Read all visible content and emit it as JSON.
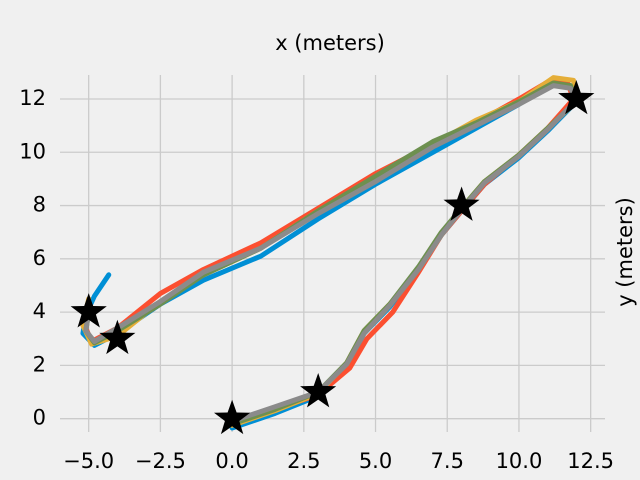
{
  "chart_data": {
    "type": "line",
    "title": "x (meters)",
    "y_label": "y (meters)",
    "xlim": [
      -6,
      13
    ],
    "ylim": [
      -0.5,
      12.9
    ],
    "xticks": [
      {
        "value": -5,
        "label": "−5.0"
      },
      {
        "value": -2.5,
        "label": "−2.5"
      },
      {
        "value": 0,
        "label": "0.0"
      },
      {
        "value": 2.5,
        "label": "2.5"
      },
      {
        "value": 5,
        "label": "5.0"
      },
      {
        "value": 7.5,
        "label": "7.5"
      },
      {
        "value": 10,
        "label": "10.0"
      },
      {
        "value": 12.5,
        "label": "12.5"
      }
    ],
    "yticks": [
      0,
      2,
      4,
      6,
      8,
      10,
      12
    ],
    "grid": true,
    "series": [
      {
        "color": "#008fd5",
        "x": [
          0,
          1.5,
          3,
          4,
          4.6,
          5.5,
          6.5,
          7.3,
          8,
          8.8,
          10,
          11,
          12,
          11.8,
          11.2,
          10,
          8.5,
          7,
          5,
          3,
          1,
          -1,
          -2.5,
          -4,
          -4.8,
          -5.2,
          -5.1,
          -4.8,
          -4.3
        ],
        "y": [
          -0.35,
          0.2,
          0.85,
          2,
          3.2,
          4.2,
          5.6,
          6.9,
          7.8,
          8.8,
          9.8,
          10.8,
          11.9,
          12.5,
          12.6,
          11.8,
          10.9,
          10,
          8.8,
          7.5,
          6.1,
          5.2,
          4.3,
          3.2,
          2.75,
          3.2,
          3.9,
          4.6,
          5.4
        ]
      },
      {
        "color": "#fc4f30",
        "x": [
          0,
          1.5,
          3,
          4.1,
          4.7,
          5.6,
          6.5,
          7.3,
          8,
          8.8,
          10,
          11,
          11.9,
          11.7,
          11.1,
          10,
          8.5,
          7,
          5,
          3,
          1,
          -1,
          -2.5,
          -4,
          -4.9,
          -5.1,
          -5
        ],
        "y": [
          -0.2,
          0.35,
          0.9,
          1.9,
          3,
          4,
          5.5,
          6.9,
          7.8,
          8.8,
          9.9,
          10.9,
          12,
          12.6,
          12.7,
          12,
          11.1,
          10.3,
          9.2,
          7.9,
          6.6,
          5.6,
          4.7,
          3.4,
          2.9,
          3.4,
          4.1
        ]
      },
      {
        "color": "#e5ae38",
        "x": [
          0,
          1.5,
          3,
          4,
          4.6,
          5.5,
          6.6,
          7.3,
          8,
          8.8,
          10,
          11,
          12.1,
          11.9,
          11.2,
          10,
          8.5,
          7,
          5,
          3,
          1,
          -1,
          -2.5,
          -4,
          -4.9,
          -5.2,
          -5
        ],
        "y": [
          -0.25,
          0.3,
          0.95,
          2.1,
          3.3,
          4.3,
          5.8,
          6.9,
          7.9,
          8.9,
          9.9,
          10.9,
          12,
          12.7,
          12.8,
          11.9,
          11.2,
          10.3,
          9,
          7.8,
          6.4,
          5.4,
          4.4,
          3.1,
          2.8,
          3.5,
          4.5
        ]
      },
      {
        "color": "#6d904f",
        "x": [
          0,
          1.5,
          3,
          4,
          4.6,
          5.5,
          6.5,
          7.3,
          8,
          8.8,
          10,
          11,
          12,
          11.8,
          11.2,
          10,
          8.5,
          7,
          5,
          3,
          1,
          -1,
          -2.5,
          -4,
          -4.8,
          -5.1,
          -5
        ],
        "y": [
          -0.2,
          0.35,
          1,
          2.1,
          3.3,
          4.3,
          5.7,
          7,
          7.9,
          8.9,
          9.9,
          10.9,
          11.9,
          12.5,
          12.6,
          11.9,
          11.1,
          10.4,
          9.1,
          7.8,
          6.4,
          5.4,
          4.3,
          3.3,
          2.85,
          3.3,
          4
        ]
      },
      {
        "color": "#8b8b8b",
        "x": [
          0,
          1.5,
          3,
          4,
          4.6,
          5.5,
          6.5,
          7.3,
          8,
          8.8,
          10,
          11,
          12,
          11.8,
          11.2,
          10,
          8.5,
          7,
          5,
          3,
          1,
          -1,
          -2.5,
          -4,
          -4.8,
          -5.1,
          -5
        ],
        "y": [
          -0.1,
          0.45,
          1,
          2.05,
          3.2,
          4.25,
          5.6,
          6.9,
          7.85,
          8.85,
          9.85,
          10.85,
          11.95,
          12.4,
          12.5,
          11.8,
          11,
          10.2,
          8.9,
          7.7,
          6.4,
          5.5,
          4.4,
          3.4,
          2.9,
          3.3,
          4
        ]
      }
    ],
    "waypoints": {
      "color": "#000000",
      "marker": "star",
      "x": [
        0,
        3,
        8,
        12,
        -4,
        -5
      ],
      "y": [
        0,
        1,
        8,
        12,
        3,
        4
      ]
    }
  }
}
